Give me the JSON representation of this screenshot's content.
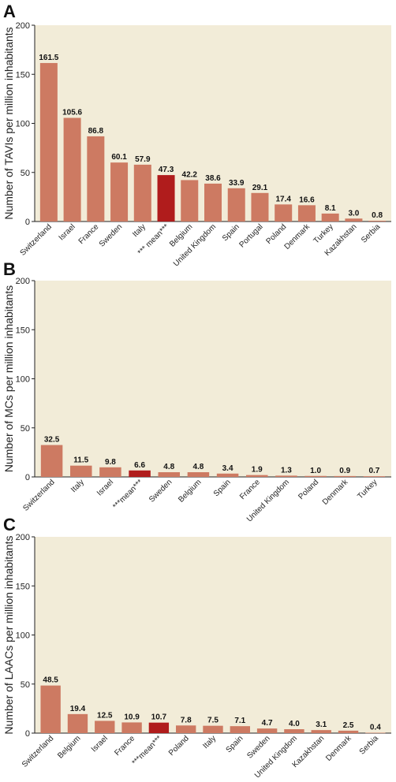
{
  "colors": {
    "panel_bg": "#f2ecd8",
    "bar": "#cd7a62",
    "mean_bar": "#b01c1c",
    "axis": "#222222"
  },
  "chart_data": [
    {
      "type": "bar",
      "panel": "A",
      "ylabel": "Number of TAVIs per million inhabitants",
      "ylim": [
        0,
        200
      ],
      "yticks": [
        0,
        50,
        100,
        150,
        200
      ],
      "categories": [
        "Switzerland",
        "Israel",
        "France",
        "Sweden",
        "Italy",
        "*** mean***",
        "Belgium",
        "United Kingdom",
        "Spain",
        "Portugal",
        "Poland",
        "Denmark",
        "Turkey",
        "Kazakhstan",
        "Serbia"
      ],
      "values": [
        161.5,
        105.6,
        86.8,
        60.1,
        57.9,
        47.3,
        42.2,
        38.6,
        33.9,
        29.1,
        17.4,
        16.6,
        8.1,
        3.0,
        0.8
      ],
      "labels": [
        "161.5",
        "105.6",
        "86.8",
        "60.1",
        "57.9",
        "47.3",
        "42.2",
        "38.6",
        "33.9",
        "29.1",
        "17.4",
        "16.6",
        "8.1",
        "3.0",
        "0.8"
      ],
      "highlight_index": 5
    },
    {
      "type": "bar",
      "panel": "B",
      "ylabel": "Number of MCs per million inhabitants",
      "ylim": [
        0,
        200
      ],
      "yticks": [
        0,
        50,
        100,
        150,
        200
      ],
      "categories": [
        "Switzerland",
        "Italy",
        "Israel",
        "***mean***",
        "Sweden",
        "Belgium",
        "Spain",
        "France",
        "United Kingdom",
        "Poland",
        "Denmark",
        "Turkey"
      ],
      "values": [
        32.5,
        11.5,
        9.8,
        6.6,
        4.8,
        4.8,
        3.4,
        1.9,
        1.3,
        1.0,
        0.9,
        0.7
      ],
      "labels": [
        "32.5",
        "11.5",
        "9.8",
        "6.6",
        "4.8",
        "4.8",
        "3.4",
        "1.9",
        "1.3",
        "1.0",
        "0.9",
        "0.7"
      ],
      "highlight_index": 3
    },
    {
      "type": "bar",
      "panel": "C",
      "ylabel": "Number of LAACs per million inhabitants",
      "ylim": [
        0,
        200
      ],
      "yticks": [
        0,
        50,
        100,
        150,
        200
      ],
      "categories": [
        "Switzerland",
        "Belgium",
        "Israel",
        "France",
        "***mean***",
        "Poland",
        "Italy",
        "Spain",
        "Sweden",
        "United Kingdom",
        "Kazakhstan",
        "Denmark",
        "Serbia"
      ],
      "values": [
        48.5,
        19.4,
        12.5,
        10.9,
        10.7,
        7.8,
        7.5,
        7.1,
        4.7,
        4.0,
        3.1,
        2.5,
        0.4
      ],
      "labels": [
        "48.5",
        "19.4",
        "12.5",
        "10.9",
        "10.7",
        "7.8",
        "7.5",
        "7.1",
        "4.7",
        "4.0",
        "3.1",
        "2.5",
        "0.4"
      ],
      "highlight_index": 4
    }
  ]
}
